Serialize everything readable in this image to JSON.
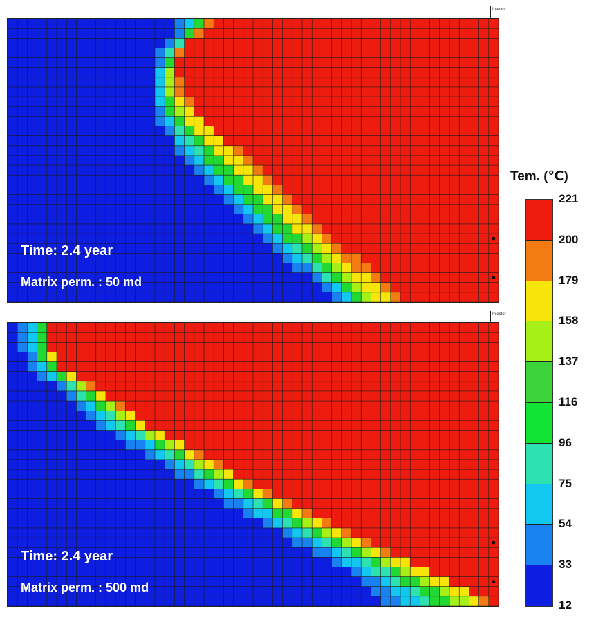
{
  "panels": [
    {
      "time_label": "Time: 2.4 year",
      "perm_label": "Matrix perm. : 50 md",
      "injector_label": "Injector",
      "grid": {
        "cols": 50,
        "rows": 29
      },
      "fronts": {
        "red": [
          [
            0,
            20.3
          ],
          [
            2,
            17.9
          ],
          [
            3,
            17.1
          ],
          [
            5,
            16.9
          ],
          [
            7,
            17.5
          ],
          [
            9,
            19.0
          ],
          [
            12,
            22.0
          ],
          [
            16,
            26.2
          ],
          [
            20,
            30.2
          ],
          [
            24,
            35.2
          ],
          [
            27,
            38.5
          ],
          [
            30,
            42.8
          ],
          [
            32,
            46.2
          ],
          [
            35,
            50.0
          ]
        ],
        "yellow": [
          [
            0,
            19.4
          ],
          [
            2,
            17.2
          ],
          [
            4,
            16.3
          ],
          [
            6,
            16.2
          ],
          [
            8,
            16.5
          ],
          [
            10,
            18.0
          ],
          [
            13,
            21.0
          ],
          [
            17,
            25.0
          ],
          [
            21,
            29.0
          ],
          [
            25,
            33.5
          ],
          [
            28,
            37.0
          ],
          [
            31,
            41.0
          ],
          [
            33,
            44.2
          ],
          [
            35,
            48.0
          ]
        ],
        "green": [
          [
            0,
            18.7
          ],
          [
            3,
            16.4
          ],
          [
            5,
            15.6
          ],
          [
            7,
            15.4
          ],
          [
            9,
            15.9
          ],
          [
            11,
            17.1
          ],
          [
            14,
            20.0
          ],
          [
            18,
            24.0
          ],
          [
            22,
            28.0
          ],
          [
            26,
            32.5
          ],
          [
            29,
            36.0
          ],
          [
            32,
            40.0
          ],
          [
            35,
            45.0
          ]
        ],
        "cyan": [
          [
            0,
            17.9
          ],
          [
            3,
            15.6
          ],
          [
            5,
            15.0
          ],
          [
            7,
            14.8
          ],
          [
            9,
            15.2
          ],
          [
            12,
            17.0
          ],
          [
            16,
            20.6
          ],
          [
            20,
            24.8
          ],
          [
            24,
            29.0
          ],
          [
            27,
            32.5
          ],
          [
            30,
            35.8
          ],
          [
            33,
            39.5
          ],
          [
            35,
            42.5
          ]
        ],
        "blue": [
          [
            0,
            17.0
          ],
          [
            3,
            14.8
          ],
          [
            5,
            14.2
          ],
          [
            7,
            14.1
          ],
          [
            10,
            15.0
          ],
          [
            13,
            17.0
          ],
          [
            17,
            20.4
          ],
          [
            21,
            24.8
          ],
          [
            25,
            29.0
          ],
          [
            28,
            32.5
          ],
          [
            31,
            35.8
          ],
          [
            35,
            40.5
          ]
        ]
      },
      "wells": [
        {
          "row": 22,
          "col": 49
        },
        {
          "row": 26,
          "col": 49
        }
      ]
    },
    {
      "time_label": "Time: 2.4 year",
      "perm_label": "Matrix perm. : 500 md",
      "injector_label": "Injector",
      "grid": {
        "cols": 50,
        "rows": 29
      },
      "fronts": {
        "red": [
          [
            0,
            4.0
          ],
          [
            1,
            4.0
          ],
          [
            2,
            4.0
          ],
          [
            3,
            4.2
          ],
          [
            4,
            5.0
          ],
          [
            5,
            6.5
          ],
          [
            7,
            10.0
          ],
          [
            10,
            14.0
          ],
          [
            13,
            19.5
          ],
          [
            16,
            24.5
          ],
          [
            19,
            30.5
          ],
          [
            22,
            36.5
          ],
          [
            24,
            41.0
          ],
          [
            26,
            45.0
          ],
          [
            27,
            47.0
          ],
          [
            29,
            50.0
          ]
        ],
        "yellow": [
          [
            0,
            3.5
          ],
          [
            1,
            3.4
          ],
          [
            2,
            3.5
          ],
          [
            3,
            3.8
          ],
          [
            4,
            4.5
          ],
          [
            5,
            6.0
          ],
          [
            7,
            9.0
          ],
          [
            10,
            13.0
          ],
          [
            13,
            18.0
          ],
          [
            16,
            23.0
          ],
          [
            19,
            29.0
          ],
          [
            22,
            35.0
          ],
          [
            25,
            41.0
          ],
          [
            27,
            45.0
          ],
          [
            29,
            48.0
          ]
        ],
        "green": [
          [
            0,
            2.7
          ],
          [
            2,
            2.7
          ],
          [
            3,
            3.0
          ],
          [
            4,
            3.6
          ],
          [
            5,
            4.7
          ],
          [
            7,
            7.5
          ],
          [
            10,
            11.5
          ],
          [
            13,
            16.5
          ],
          [
            16,
            21.5
          ],
          [
            19,
            27.0
          ],
          [
            22,
            32.8
          ],
          [
            25,
            38.2
          ],
          [
            27,
            41.5
          ],
          [
            29,
            44.5
          ]
        ],
        "cyan": [
          [
            0,
            2.0
          ],
          [
            2,
            2.0
          ],
          [
            3,
            2.3
          ],
          [
            4,
            2.8
          ],
          [
            5,
            3.8
          ],
          [
            7,
            6.3
          ],
          [
            10,
            10.0
          ],
          [
            13,
            14.8
          ],
          [
            16,
            19.8
          ],
          [
            19,
            25.0
          ],
          [
            22,
            30.5
          ],
          [
            25,
            35.5
          ],
          [
            27,
            38.8
          ],
          [
            29,
            41.0
          ]
        ],
        "blue": [
          [
            0,
            1.0
          ],
          [
            2,
            1.0
          ],
          [
            3,
            1.4
          ],
          [
            4,
            2.0
          ],
          [
            5,
            3.0
          ],
          [
            7,
            5.5
          ],
          [
            10,
            9.0
          ],
          [
            13,
            13.5
          ],
          [
            16,
            18.5
          ],
          [
            19,
            23.5
          ],
          [
            22,
            29.0
          ],
          [
            25,
            34.2
          ],
          [
            27,
            37.0
          ],
          [
            29,
            39.0
          ]
        ]
      },
      "wells": [
        {
          "row": 22,
          "col": 49
        },
        {
          "row": 26,
          "col": 49
        }
      ]
    }
  ],
  "legend": {
    "title": "Tem. (℃)",
    "ticks": [
      "221",
      "200",
      "179",
      "158",
      "137",
      "116",
      "96",
      "75",
      "54",
      "33",
      "12"
    ],
    "colors": [
      "#ee1c0e",
      "#f47a12",
      "#f6e40a",
      "#a6f018",
      "#3cd43a",
      "#12e436",
      "#2de2b0",
      "#12c8f0",
      "#1a82f0",
      "#0d1ee0"
    ]
  },
  "palette": {
    "grid_line": "#1a1a1a",
    "hot": "#ee1c0e",
    "orange": "#f47a12",
    "yellow": "#f6e40a",
    "lime": "#a6f018",
    "green": "#22d832",
    "teal": "#2de2b0",
    "cyan": "#12c8f0",
    "mid_blue": "#1a82f0",
    "cold": "#0d1ee0"
  }
}
